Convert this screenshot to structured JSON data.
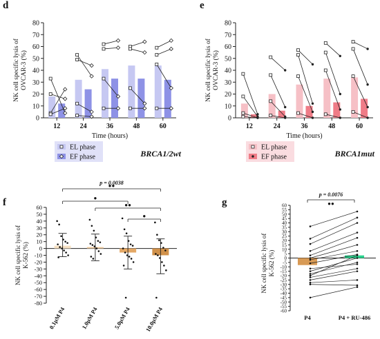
{
  "chart_data": [
    {
      "panel": "d",
      "type": "bar",
      "categories": [
        "12",
        "24",
        "36",
        "48",
        "60"
      ],
      "xlabel": "Time (hours)",
      "ylabel": "NK cell specific lysis of OVCAR-3 (%)",
      "ylim": [
        0,
        80
      ],
      "yticks": [
        0,
        10,
        20,
        30,
        40,
        50,
        60,
        70,
        80
      ],
      "gene_label": "BRCA1/2wt",
      "series": [
        {
          "name": "EL phase",
          "values": [
            18,
            32,
            41,
            44,
            44
          ],
          "color": "#c6c8f2",
          "points": [
            [
              33,
              20,
              4,
              3
            ],
            [
              53,
              49,
              12,
              2
            ],
            [
              62,
              58,
              33,
              8
            ],
            [
              60,
              58,
              25,
              8
            ],
            [
              59,
              53,
              45,
              8
            ]
          ]
        },
        {
          "name": "EF phase",
          "values": [
            12,
            24,
            33,
            33,
            32
          ],
          "color": "#8e92e6",
          "points": [
            [
              4,
              16,
              24,
              8
            ],
            [
              35,
              44,
              5,
              1
            ],
            [
              65,
              59,
              18,
              8
            ],
            [
              64,
              55,
              12,
              8
            ],
            [
              65,
              58,
              25,
              8
            ]
          ]
        }
      ],
      "legend": [
        "EL phase",
        "EF phase"
      ]
    },
    {
      "panel": "e",
      "type": "bar",
      "categories": [
        "12",
        "24",
        "36",
        "48",
        "60"
      ],
      "xlabel": "Time (hours)",
      "ylabel": "NK cell specific lysis of OVCAR-3 (%)",
      "ylim": [
        0,
        80
      ],
      "yticks": [
        0,
        10,
        20,
        30,
        40,
        50,
        60,
        70,
        80
      ],
      "gene_label": "BRCA1mut",
      "series": [
        {
          "name": "EL phase",
          "values": [
            12,
            20,
            28,
            33,
            34
          ],
          "color": "#f6c0c6",
          "points": [
            [
              37,
              18,
              4,
              1
            ],
            [
              51,
              36,
              14,
              2
            ],
            [
              57,
              53,
              35,
              4
            ],
            [
              63,
              55,
              40,
              3
            ],
            [
              64,
              58,
              35,
              5
            ]
          ]
        },
        {
          "name": "EF phase",
          "values": [
            3,
            6,
            10,
            13,
            16
          ],
          "color": "#ef7c87",
          "points": [
            [
              3,
              1,
              0,
              0
            ],
            [
              40,
              9,
              1,
              0
            ],
            [
              45,
              12,
              5,
              0
            ],
            [
              52,
              20,
              7,
              0
            ],
            [
              58,
              28,
              9,
              0
            ]
          ]
        }
      ],
      "legend": [
        "EL phase",
        "EF phase"
      ]
    },
    {
      "panel": "f",
      "type": "bar",
      "categories": [
        "0.1µM P4",
        "1.0µM P4",
        "5.0µM P4",
        "10.0µM P4"
      ],
      "ylabel": "NK cell specific lysis of K-562 (%)",
      "ylim": [
        -80,
        60
      ],
      "yticks": [
        -80,
        -70,
        -60,
        -50,
        -40,
        -30,
        -20,
        -10,
        0,
        10,
        20,
        30,
        40,
        50,
        60
      ],
      "values": [
        4,
        2,
        -6,
        -10
      ],
      "error": [
        [
          -12,
          22
        ],
        [
          -18,
          21
        ],
        [
          -30,
          18
        ],
        [
          -37,
          14
        ]
      ],
      "colors": [
        "#f8e2c4",
        "#f1cca0",
        "#e4a865",
        "#d0914a"
      ],
      "points": [
        [
          40,
          35,
          18,
          13,
          10,
          8,
          6,
          2,
          0,
          -3,
          -6,
          -10,
          -13
        ],
        [
          42,
          33,
          26,
          16,
          11,
          9,
          7,
          5,
          3,
          0,
          -4,
          -8,
          -12,
          -15
        ],
        [
          44,
          28,
          22,
          11,
          6,
          4,
          0,
          -6,
          -10,
          -12,
          -15,
          -20,
          -25,
          -72
        ],
        [
          38,
          20,
          12,
          8,
          1,
          -3,
          -8,
          -10,
          -14,
          -20,
          -25,
          -32,
          -72
        ]
      ],
      "p_text": "p = 0.0038",
      "sig": [
        "●●",
        "●",
        "●●",
        "●"
      ]
    },
    {
      "panel": "g",
      "type": "bar",
      "categories": [
        "P4",
        "P4 + RU-486"
      ],
      "ylabel": "NK cell specific lysis of K-562 (%)",
      "ylim": [
        -60,
        60
      ],
      "yticks": [
        -60,
        -55,
        -50,
        -45,
        -40,
        -35,
        -30,
        -25,
        -20,
        -15,
        -10,
        -5,
        0,
        5,
        10,
        15,
        20,
        25,
        30,
        35,
        40,
        45,
        50,
        55,
        60
      ],
      "values": [
        -8,
        3
      ],
      "colors": [
        "#d89a55",
        "#2bd38f"
      ],
      "pairs": [
        [
          36,
          53
        ],
        [
          22,
          46
        ],
        [
          16,
          40
        ],
        [
          8,
          29
        ],
        [
          3,
          23
        ],
        [
          0,
          15
        ],
        [
          -2,
          8
        ],
        [
          -6,
          4
        ],
        [
          -12,
          -7
        ],
        [
          -15,
          0
        ],
        [
          -18,
          -5
        ],
        [
          -20,
          3
        ],
        [
          -22,
          -12
        ],
        [
          -25,
          -15
        ],
        [
          -28,
          -25
        ],
        [
          -30,
          -31
        ],
        [
          -45,
          -33
        ]
      ],
      "p_text": "p = 0.0076",
      "sig": "●●"
    }
  ]
}
